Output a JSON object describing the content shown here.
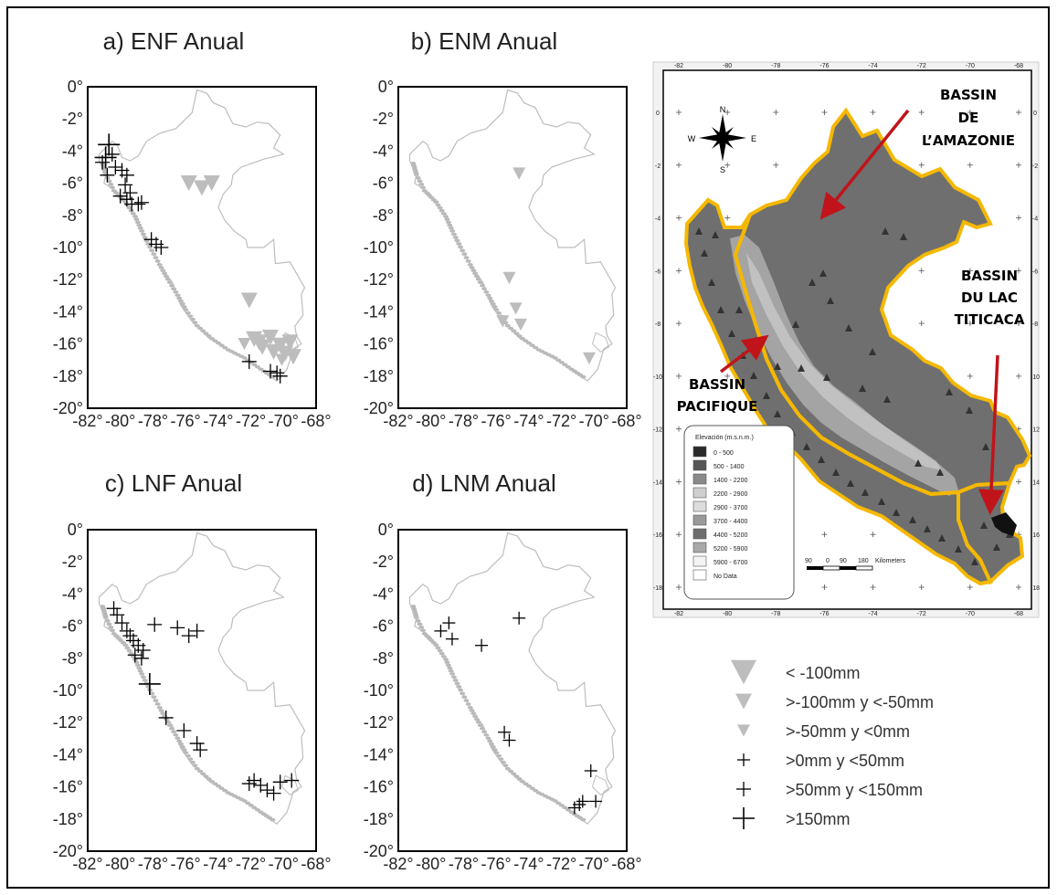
{
  "panels": [
    {
      "id": "a",
      "title": "a) ENF Anual",
      "triangles": [
        [
          -75.8,
          -6.0,
          2
        ],
        [
          -75.0,
          -6.3,
          2
        ],
        [
          -74.4,
          -6.0,
          2
        ],
        [
          -72.1,
          -13.3,
          2
        ],
        [
          -71.8,
          -15.7,
          2
        ],
        [
          -71.3,
          -16.2,
          2
        ],
        [
          -70.8,
          -15.6,
          2
        ],
        [
          -70.2,
          -16.1,
          2
        ],
        [
          -69.9,
          -16.6,
          2
        ],
        [
          -69.4,
          -16.8,
          2
        ],
        [
          -70.6,
          -16.5,
          2
        ],
        [
          -71.5,
          -15.9,
          2
        ],
        [
          -69.6,
          -15.9,
          2
        ],
        [
          -70.1,
          -17.0,
          1
        ],
        [
          -72.4,
          -16.0,
          1
        ]
      ],
      "crosses": [
        [
          -80.7,
          -3.6,
          3
        ],
        [
          -80.9,
          -4.4,
          3
        ],
        [
          -80.5,
          -4.2,
          2
        ],
        [
          -81.1,
          -4.7,
          2
        ],
        [
          -80.8,
          -5.5,
          2
        ],
        [
          -80.3,
          -5.0,
          2
        ],
        [
          -79.9,
          -5.2,
          2
        ],
        [
          -79.6,
          -5.5,
          2
        ],
        [
          -79.7,
          -6.1,
          2
        ],
        [
          -79.4,
          -6.6,
          2
        ],
        [
          -80.0,
          -6.8,
          2
        ],
        [
          -79.6,
          -7.0,
          2
        ],
        [
          -79.3,
          -7.3,
          2
        ],
        [
          -78.9,
          -7.3,
          2
        ],
        [
          -78.7,
          -7.2,
          2
        ],
        [
          -78.1,
          -9.5,
          2
        ],
        [
          -77.8,
          -9.8,
          2
        ],
        [
          -77.5,
          -10.0,
          2
        ],
        [
          -72.1,
          -17.1,
          2
        ],
        [
          -70.8,
          -17.7,
          2
        ],
        [
          -70.4,
          -17.8,
          2
        ],
        [
          -70.2,
          -18.0,
          2
        ]
      ]
    },
    {
      "id": "b",
      "title": "b) ENM Anual",
      "triangles": [
        [
          -74.6,
          -5.4,
          1
        ],
        [
          -75.2,
          -11.9,
          1
        ],
        [
          -74.8,
          -13.8,
          1
        ],
        [
          -74.5,
          -14.8,
          1
        ],
        [
          -75.6,
          -14.6,
          1
        ],
        [
          -70.3,
          -16.9,
          1
        ]
      ],
      "crosses": []
    },
    {
      "id": "c",
      "title": "c) LNF Anual",
      "triangles": [],
      "crosses": [
        [
          -80.4,
          -4.9,
          2
        ],
        [
          -80.2,
          -5.3,
          2
        ],
        [
          -79.9,
          -5.8,
          2
        ],
        [
          -79.6,
          -6.3,
          2
        ],
        [
          -79.4,
          -6.6,
          2
        ],
        [
          -79.2,
          -6.9,
          2
        ],
        [
          -78.9,
          -7.2,
          2
        ],
        [
          -79.1,
          -7.8,
          2
        ],
        [
          -78.6,
          -7.5,
          2
        ],
        [
          -78.7,
          -8.0,
          2
        ],
        [
          -77.9,
          -5.9,
          2
        ],
        [
          -76.5,
          -6.1,
          2
        ],
        [
          -75.8,
          -6.6,
          2
        ],
        [
          -75.3,
          -6.3,
          2
        ],
        [
          -78.2,
          -9.6,
          3
        ],
        [
          -77.2,
          -11.7,
          2
        ],
        [
          -76.1,
          -12.5,
          2
        ],
        [
          -75.3,
          -13.3,
          2
        ],
        [
          -75.1,
          -13.7,
          2
        ],
        [
          -72.1,
          -15.8,
          2
        ],
        [
          -71.8,
          -15.6,
          2
        ],
        [
          -71.4,
          -15.9,
          2
        ],
        [
          -71.0,
          -16.2,
          2
        ],
        [
          -70.6,
          -16.4,
          2
        ],
        [
          -70.2,
          -15.7,
          2
        ],
        [
          -69.5,
          -15.6,
          2
        ]
      ]
    },
    {
      "id": "d",
      "title": "d) LNM Anual",
      "triangles": [],
      "crosses": [
        [
          -79.4,
          -6.3,
          1
        ],
        [
          -78.9,
          -5.8,
          1
        ],
        [
          -78.7,
          -6.8,
          1
        ],
        [
          -76.9,
          -7.2,
          1
        ],
        [
          -74.6,
          -5.5,
          1
        ],
        [
          -75.5,
          -12.6,
          1
        ],
        [
          -75.2,
          -13.1,
          1
        ],
        [
          -70.2,
          -15.0,
          1
        ],
        [
          -70.7,
          -16.9,
          1
        ],
        [
          -70.9,
          -17.1,
          1
        ],
        [
          -71.2,
          -17.3,
          1
        ],
        [
          -69.9,
          -16.9,
          1
        ]
      ]
    }
  ],
  "axis": {
    "y_ticks": [
      "0°",
      "-2°",
      "-4°",
      "-6°",
      "-8°",
      "-10°",
      "-12°",
      "-14°",
      "-16°",
      "-18°",
      "-20°"
    ],
    "x_ticks": [
      "-82°",
      "-80°",
      "-78°",
      "-76°",
      "-74°",
      "-72°",
      "-70°",
      "-68°"
    ]
  },
  "topo_map": {
    "x_ticks": [
      "-82",
      "-80",
      "-78",
      "-76",
      "-74",
      "-72",
      "-70",
      "-68"
    ],
    "y_ticks": [
      "0",
      "-2",
      "-4",
      "-6",
      "-8",
      "-10",
      "-12",
      "-14",
      "-16",
      "-18"
    ],
    "compass": {
      "n": "N",
      "s": "S",
      "e": "E",
      "w": "W"
    },
    "labels": {
      "amazon": [
        "BASSIN",
        "DE",
        "L’AMAZONIE"
      ],
      "titicaca": [
        "BASSIN",
        "DU LAC",
        "TITICACA"
      ],
      "pacific": [
        "BASSIN",
        "PACIFIQUE"
      ]
    },
    "legend_title": "Elevación (m.s.n.m.)",
    "legend_items": [
      {
        "label": "0 - 500",
        "color": "#2a2a2a"
      },
      {
        "label": "500 - 1400",
        "color": "#555555"
      },
      {
        "label": "1400 - 2200",
        "color": "#8a8a8a"
      },
      {
        "label": "2200 - 2900",
        "color": "#cfcfcf"
      },
      {
        "label": "2900 - 3700",
        "color": "#dcdcdc"
      },
      {
        "label": "3700 - 4400",
        "color": "#9a9a9a"
      },
      {
        "label": "4400 - 5200",
        "color": "#6e6e6e"
      },
      {
        "label": "5200 - 5900",
        "color": "#a8a8a8"
      },
      {
        "label": "5900 - 6700",
        "color": "#f4f4f4"
      },
      {
        "label": "No Data",
        "color": "#ffffff"
      }
    ],
    "scale_labels": [
      "90",
      "0",
      "90",
      "180",
      "Kilometers"
    ]
  },
  "legend": [
    {
      "symbol": "triangle",
      "size": 3,
      "label": "< -100mm"
    },
    {
      "symbol": "triangle",
      "size": 2,
      "label": ">-100mm y <-50mm"
    },
    {
      "symbol": "triangle",
      "size": 1,
      "label": ">-50mm y <0mm"
    },
    {
      "symbol": "cross",
      "size": 1,
      "label": ">0mm y <50mm"
    },
    {
      "symbol": "cross",
      "size": 2,
      "label": ">50mm y <150mm"
    },
    {
      "symbol": "cross",
      "size": 3,
      "label": ">150mm"
    }
  ],
  "colors": {
    "triangle": "#bdbdbd",
    "cross": "#000000",
    "outline": "#bdbdbd",
    "basin_outline": "#f5b800",
    "arrow": "#c0141a",
    "land": "#6f6f6f"
  }
}
